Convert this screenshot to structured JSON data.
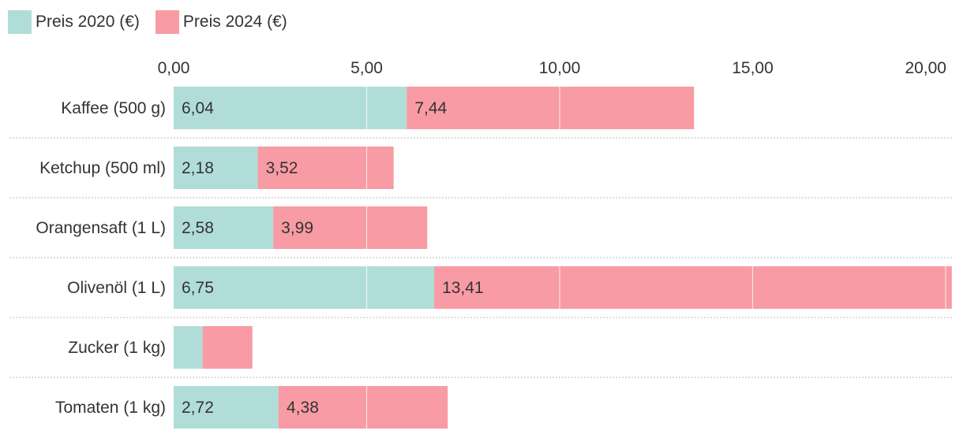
{
  "legend": [
    {
      "label": "Preis 2020 (€)",
      "color": "#b1ddd9"
    },
    {
      "label": "Preis 2024 (€)",
      "color": "#f89ba4"
    }
  ],
  "chart_data": {
    "type": "bar",
    "orientation": "horizontal",
    "stacked": true,
    "categories": [
      "Kaffee (500 g)",
      "Ketchup (500 ml)",
      "Orangensaft (1 L)",
      "Olivenöl (1 L)",
      "Zucker (1 kg)",
      "Tomaten (1 kg)"
    ],
    "series": [
      {
        "name": "Preis 2020 (€)",
        "color": "#b1ddd9",
        "values": [
          6.04,
          2.18,
          2.58,
          6.75,
          0.75,
          2.72
        ],
        "labels": [
          "6,04",
          "2,18",
          "2,58",
          "6,75",
          "",
          "2,72"
        ]
      },
      {
        "name": "Preis 2024 (€)",
        "color": "#f89ba4",
        "values": [
          7.44,
          3.52,
          3.99,
          13.41,
          1.29,
          4.38
        ],
        "labels": [
          "7,44",
          "3,52",
          "3,99",
          "13,41",
          "",
          "4,38"
        ]
      }
    ],
    "xlim": [
      0,
      20.26
    ],
    "xticks": [
      0,
      5,
      10,
      15,
      20
    ],
    "xtick_labels": [
      "0,00",
      "5,00",
      "10,00",
      "15,00",
      "20,00"
    ],
    "xaxis_position": "top",
    "grid": true,
    "legend_position": "top-left"
  }
}
